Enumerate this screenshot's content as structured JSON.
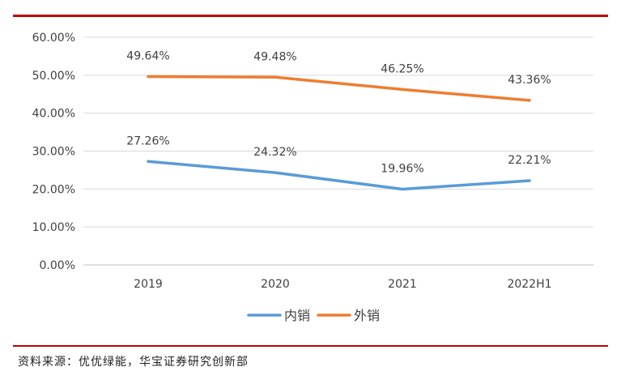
{
  "chart_data": {
    "type": "line",
    "categories": [
      "2019",
      "2020",
      "2021",
      "2022H1"
    ],
    "series": [
      {
        "name": "内销",
        "color": "#5b9bd5",
        "values": [
          27.26,
          24.32,
          19.96,
          22.21
        ],
        "labels": [
          "27.26%",
          "24.32%",
          "19.96%",
          "22.21%"
        ]
      },
      {
        "name": "外销",
        "color": "#ed7d31",
        "values": [
          49.64,
          49.48,
          46.25,
          43.36
        ],
        "labels": [
          "49.64%",
          "49.48%",
          "46.25%",
          "43.36%"
        ]
      }
    ],
    "ylim": [
      0,
      60
    ],
    "yticks": [
      0,
      10,
      20,
      30,
      40,
      50,
      60
    ],
    "ytick_labels": [
      "0.00%",
      "10.00%",
      "20.00%",
      "30.00%",
      "40.00%",
      "50.00%",
      "60.00%"
    ],
    "grid": true,
    "legend": "bottom"
  },
  "footer": {
    "source": "资料来源：优优绿能，华宝证券研究创新部"
  }
}
